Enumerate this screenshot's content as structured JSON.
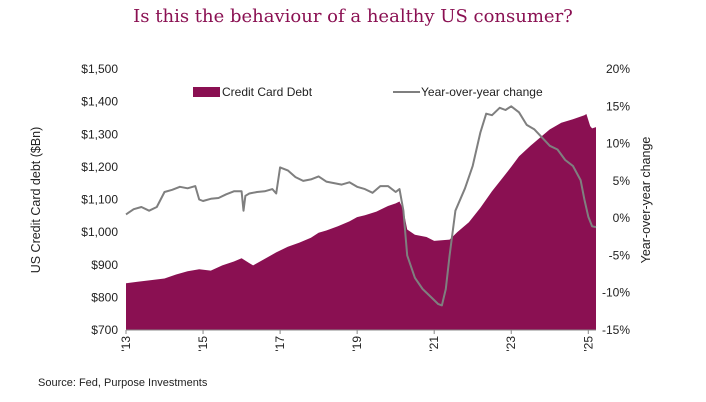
{
  "chart_data": {
    "type": "area",
    "title": "Is this the behaviour of a healthy US consumer?",
    "source": "Source: Fed, Purpose Investments",
    "ylabel_left": "US Credit Card  debt ($Bn)",
    "ylabel_right": "Year-over-year  change",
    "left_axis": {
      "min": 700,
      "max": 1500,
      "ticks": [
        700,
        800,
        900,
        1000,
        1100,
        1200,
        1300,
        1400,
        1500
      ],
      "tick_labels": [
        "$700",
        "$800",
        "$900",
        "$1,000",
        "$1,100",
        "$1,200",
        "$1,300",
        "$1,400",
        "$1,500"
      ]
    },
    "right_axis": {
      "min": -15,
      "max": 20,
      "ticks": [
        -15,
        -10,
        -5,
        0,
        5,
        10,
        15,
        20
      ],
      "tick_labels": [
        "-15%",
        "-10%",
        "-5%",
        "0%",
        "5%",
        "10%",
        "15%",
        "20%"
      ]
    },
    "x_axis": {
      "min": 2013.0,
      "max": 2025.2,
      "ticks": [
        2013,
        2015,
        2017,
        2019,
        2021,
        2023,
        2025
      ],
      "tick_labels": [
        "'13",
        "'15",
        "'17",
        "'19",
        "'21",
        "'23",
        "'25"
      ]
    },
    "series": [
      {
        "name": "Credit Card Debt",
        "axis": "left",
        "style": "area",
        "color": "#8a1052",
        "points": [
          [
            2013.0,
            843
          ],
          [
            2013.3,
            848
          ],
          [
            2013.6,
            852
          ],
          [
            2014.0,
            858
          ],
          [
            2014.3,
            870
          ],
          [
            2014.6,
            880
          ],
          [
            2014.9,
            886
          ],
          [
            2015.2,
            882
          ],
          [
            2015.5,
            898
          ],
          [
            2015.8,
            910
          ],
          [
            2016.0,
            920
          ],
          [
            2016.2,
            905
          ],
          [
            2016.3,
            898
          ],
          [
            2016.6,
            918
          ],
          [
            2016.9,
            938
          ],
          [
            2017.2,
            955
          ],
          [
            2017.5,
            968
          ],
          [
            2017.8,
            983
          ],
          [
            2018.0,
            998
          ],
          [
            2018.2,
            1005
          ],
          [
            2018.5,
            1018
          ],
          [
            2018.8,
            1033
          ],
          [
            2019.0,
            1046
          ],
          [
            2019.2,
            1052
          ],
          [
            2019.5,
            1063
          ],
          [
            2019.8,
            1080
          ],
          [
            2020.0,
            1088
          ],
          [
            2020.1,
            1094
          ],
          [
            2020.2,
            1068
          ],
          [
            2020.3,
            1008
          ],
          [
            2020.5,
            992
          ],
          [
            2020.8,
            985
          ],
          [
            2021.0,
            973
          ],
          [
            2021.2,
            975
          ],
          [
            2021.4,
            977
          ],
          [
            2021.6,
            1000
          ],
          [
            2021.9,
            1030
          ],
          [
            2022.2,
            1075
          ],
          [
            2022.5,
            1125
          ],
          [
            2022.8,
            1170
          ],
          [
            2023.0,
            1200
          ],
          [
            2023.2,
            1232
          ],
          [
            2023.5,
            1265
          ],
          [
            2023.8,
            1295
          ],
          [
            2024.0,
            1315
          ],
          [
            2024.3,
            1335
          ],
          [
            2024.6,
            1346
          ],
          [
            2024.9,
            1358
          ],
          [
            2024.95,
            1362
          ],
          [
            2025.05,
            1325
          ],
          [
            2025.1,
            1318
          ],
          [
            2025.2,
            1322
          ]
        ]
      },
      {
        "name": "Year-over-year change",
        "axis": "right",
        "style": "line",
        "color": "#7f7f7f",
        "points": [
          [
            2013.0,
            0.5
          ],
          [
            2013.2,
            1.2
          ],
          [
            2013.4,
            1.5
          ],
          [
            2013.6,
            1.0
          ],
          [
            2013.8,
            1.5
          ],
          [
            2014.0,
            3.5
          ],
          [
            2014.2,
            3.8
          ],
          [
            2014.4,
            4.2
          ],
          [
            2014.6,
            4.0
          ],
          [
            2014.8,
            4.3
          ],
          [
            2014.9,
            2.5
          ],
          [
            2015.0,
            2.3
          ],
          [
            2015.2,
            2.6
          ],
          [
            2015.4,
            2.7
          ],
          [
            2015.6,
            3.2
          ],
          [
            2015.8,
            3.6
          ],
          [
            2016.0,
            3.6
          ],
          [
            2016.05,
            1.0
          ],
          [
            2016.1,
            3.0
          ],
          [
            2016.2,
            3.3
          ],
          [
            2016.4,
            3.5
          ],
          [
            2016.6,
            3.6
          ],
          [
            2016.8,
            3.9
          ],
          [
            2016.9,
            3.3
          ],
          [
            2017.0,
            6.8
          ],
          [
            2017.2,
            6.4
          ],
          [
            2017.4,
            5.5
          ],
          [
            2017.6,
            5.0
          ],
          [
            2017.8,
            5.2
          ],
          [
            2018.0,
            5.6
          ],
          [
            2018.2,
            4.9
          ],
          [
            2018.4,
            4.7
          ],
          [
            2018.6,
            4.5
          ],
          [
            2018.8,
            4.8
          ],
          [
            2019.0,
            4.2
          ],
          [
            2019.2,
            3.9
          ],
          [
            2019.4,
            3.4
          ],
          [
            2019.6,
            4.3
          ],
          [
            2019.8,
            4.3
          ],
          [
            2020.0,
            3.5
          ],
          [
            2020.1,
            3.9
          ],
          [
            2020.2,
            1.0
          ],
          [
            2020.3,
            -5.0
          ],
          [
            2020.5,
            -8.0
          ],
          [
            2020.7,
            -9.5
          ],
          [
            2020.9,
            -10.5
          ],
          [
            2021.1,
            -11.5
          ],
          [
            2021.2,
            -11.7
          ],
          [
            2021.3,
            -9.5
          ],
          [
            2021.4,
            -5.0
          ],
          [
            2021.55,
            1.0
          ],
          [
            2021.8,
            4.0
          ],
          [
            2022.0,
            7.0
          ],
          [
            2022.2,
            11.5
          ],
          [
            2022.35,
            14.0
          ],
          [
            2022.5,
            13.8
          ],
          [
            2022.7,
            14.8
          ],
          [
            2022.85,
            14.5
          ],
          [
            2023.0,
            15.0
          ],
          [
            2023.2,
            14.2
          ],
          [
            2023.4,
            12.5
          ],
          [
            2023.6,
            11.9
          ],
          [
            2023.8,
            10.8
          ],
          [
            2024.0,
            9.7
          ],
          [
            2024.2,
            9.2
          ],
          [
            2024.4,
            7.8
          ],
          [
            2024.6,
            7.0
          ],
          [
            2024.8,
            5.1
          ],
          [
            2024.9,
            2.5
          ],
          [
            2025.0,
            0.2
          ],
          [
            2025.1,
            -1.1
          ],
          [
            2025.2,
            -1.2
          ]
        ]
      }
    ],
    "legend": {
      "placement": "top",
      "entries": [
        "Credit Card Debt",
        "Year-over-year change"
      ]
    },
    "grid": false
  }
}
